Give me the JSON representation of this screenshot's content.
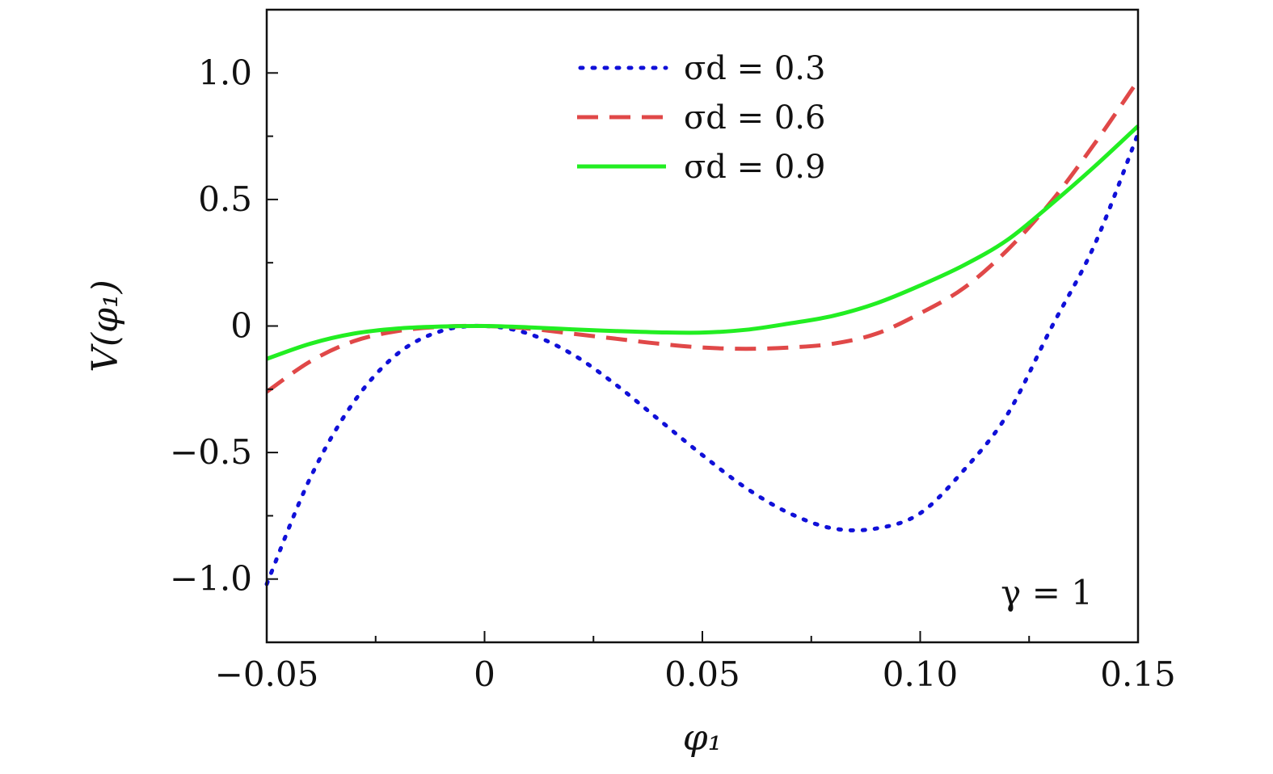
{
  "chart_data": {
    "type": "line",
    "xlabel": "φ₁",
    "ylabel": "V(φ₁)",
    "xlim": [
      -0.05,
      0.15
    ],
    "ylim": [
      -1.25,
      1.25
    ],
    "x_ticks": [
      -0.05,
      0,
      0.05,
      0.1,
      0.15
    ],
    "x_tick_labels": [
      "−0.05",
      "0",
      "0.05",
      "0.10",
      "0.15"
    ],
    "y_ticks": [
      -1.0,
      -0.5,
      0,
      0.5,
      1.0
    ],
    "y_tick_labels": [
      "−1.0",
      "−0.5",
      "0",
      "0.5",
      "1.0"
    ],
    "grid": false,
    "legend_position": "top-center",
    "annotation": "γ = 1",
    "series": [
      {
        "name": "σd = 0.3",
        "style": "dotted",
        "color": "#1010d8",
        "x": [
          -0.05,
          -0.04,
          -0.03,
          -0.02,
          -0.01,
          0,
          0.01,
          0.02,
          0.03,
          0.04,
          0.05,
          0.06,
          0.07,
          0.08,
          0.09,
          0.1,
          0.11,
          0.12,
          0.13,
          0.14,
          0.15
        ],
        "y": [
          -1.02,
          -0.6,
          -0.3,
          -0.11,
          -0.02,
          0,
          -0.03,
          -0.11,
          -0.23,
          -0.37,
          -0.51,
          -0.64,
          -0.74,
          -0.8,
          -0.8,
          -0.74,
          -0.57,
          -0.35,
          -0.01,
          0.32,
          0.76
        ]
      },
      {
        "name": "σd = 0.6",
        "style": "dashed",
        "color": "#e04848",
        "x": [
          -0.05,
          -0.04,
          -0.03,
          -0.02,
          -0.01,
          0,
          0.01,
          0.02,
          0.03,
          0.04,
          0.05,
          0.06,
          0.07,
          0.08,
          0.09,
          0.1,
          0.11,
          0.12,
          0.13,
          0.14,
          0.15
        ],
        "y": [
          -0.26,
          -0.14,
          -0.06,
          -0.02,
          -0.003,
          0,
          -0.01,
          -0.03,
          -0.05,
          -0.07,
          -0.085,
          -0.09,
          -0.085,
          -0.07,
          -0.03,
          0.05,
          0.15,
          0.3,
          0.49,
          0.72,
          0.97
        ]
      },
      {
        "name": "σd = 0.9",
        "style": "solid",
        "color": "#22ee22",
        "x": [
          -0.05,
          -0.04,
          -0.03,
          -0.02,
          -0.01,
          0,
          0.01,
          0.02,
          0.03,
          0.04,
          0.05,
          0.06,
          0.07,
          0.08,
          0.09,
          0.1,
          0.11,
          0.12,
          0.13,
          0.14,
          0.15
        ],
        "y": [
          -0.13,
          -0.07,
          -0.03,
          -0.01,
          -0.002,
          0,
          -0.005,
          -0.013,
          -0.02,
          -0.025,
          -0.026,
          -0.015,
          0.01,
          0.04,
          0.09,
          0.16,
          0.24,
          0.34,
          0.48,
          0.63,
          0.79
        ]
      }
    ]
  }
}
